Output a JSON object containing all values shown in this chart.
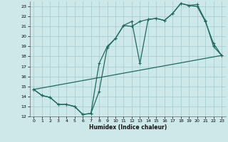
{
  "xlabel": "Humidex (Indice chaleur)",
  "background_color": "#cce8e8",
  "grid_color": "#aacfcf",
  "line_color": "#1e6b5e",
  "xlim": [
    -0.5,
    23.5
  ],
  "ylim": [
    12,
    23.5
  ],
  "xticks": [
    0,
    1,
    2,
    3,
    4,
    5,
    6,
    7,
    8,
    9,
    10,
    11,
    12,
    13,
    14,
    15,
    16,
    17,
    18,
    19,
    20,
    21,
    22,
    23
  ],
  "yticks": [
    12,
    13,
    14,
    15,
    16,
    17,
    18,
    19,
    20,
    21,
    22,
    23
  ],
  "line1_x": [
    0,
    1,
    2,
    3,
    4,
    5,
    6,
    7,
    8,
    9,
    10,
    11,
    12,
    13,
    14,
    15,
    16,
    17,
    18,
    19,
    20,
    21,
    22,
    23
  ],
  "line1_y": [
    14.7,
    14.1,
    13.9,
    13.2,
    13.2,
    13.0,
    12.2,
    12.3,
    17.3,
    19.0,
    19.8,
    21.1,
    21.0,
    21.5,
    21.7,
    21.8,
    21.6,
    22.3,
    23.3,
    23.1,
    23.2,
    21.6,
    19.0,
    18.1
  ],
  "line2_x": [
    0,
    1,
    2,
    3,
    4,
    5,
    6,
    7,
    8,
    9,
    10,
    11,
    12,
    13,
    14,
    15,
    16,
    17,
    18,
    19,
    20,
    21,
    22,
    23
  ],
  "line2_y": [
    14.7,
    14.1,
    13.9,
    13.2,
    13.2,
    13.0,
    12.2,
    12.3,
    14.5,
    18.9,
    19.8,
    21.1,
    21.5,
    17.3,
    21.7,
    21.8,
    21.6,
    22.3,
    23.3,
    23.1,
    23.0,
    21.5,
    19.3,
    18.1
  ],
  "line3_x": [
    0,
    23
  ],
  "line3_y": [
    14.7,
    18.1
  ]
}
